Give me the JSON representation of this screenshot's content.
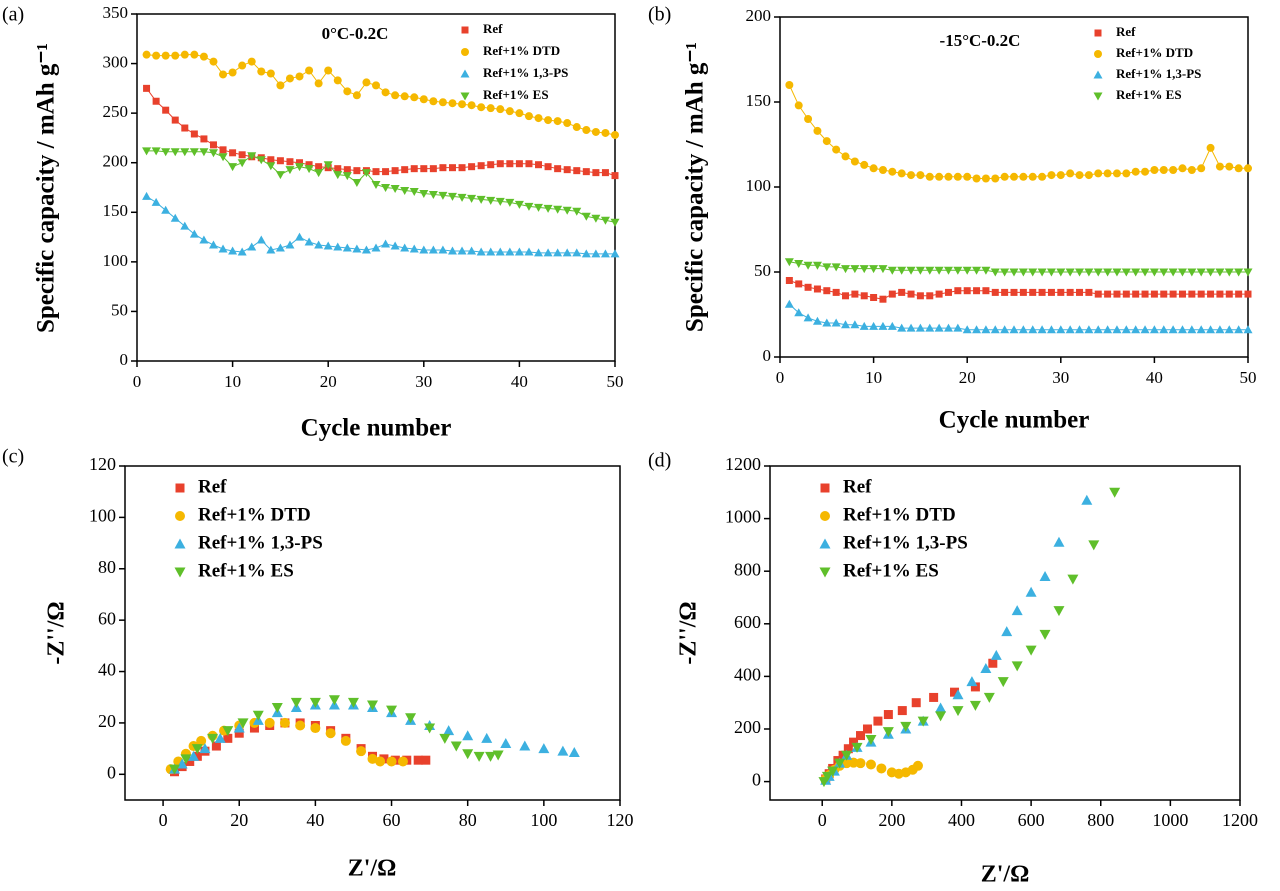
{
  "chart_data": [
    {
      "type": "line",
      "panel_label": "(a)",
      "title": "0°C-0.2C",
      "xlabel": "Cycle number",
      "ylabel": "Specific capacity / mAh g⁻¹",
      "xlim": [
        0,
        50
      ],
      "xticks": [
        0,
        10,
        20,
        30,
        40,
        50
      ],
      "ylim": [
        0,
        350
      ],
      "yticks": [
        0,
        50,
        100,
        150,
        200,
        250,
        300,
        350
      ],
      "legend": "upper right",
      "x": [
        1,
        2,
        3,
        4,
        5,
        6,
        7,
        8,
        9,
        10,
        11,
        12,
        13,
        14,
        15,
        16,
        17,
        18,
        19,
        20,
        21,
        22,
        23,
        24,
        25,
        26,
        27,
        28,
        29,
        30,
        31,
        32,
        33,
        34,
        35,
        36,
        37,
        38,
        39,
        40,
        41,
        42,
        43,
        44,
        45,
        46,
        47,
        48,
        49,
        50
      ],
      "series": [
        {
          "name": "Ref",
          "color": "#e8412c",
          "marker": "square",
          "values": [
            275,
            262,
            253,
            243,
            235,
            229,
            224,
            218,
            213,
            210,
            208,
            206,
            205,
            203,
            202,
            201,
            200,
            198,
            196,
            195,
            194,
            193,
            192,
            192,
            191,
            191,
            192,
            193,
            194,
            194,
            194,
            195,
            195,
            195,
            196,
            197,
            198,
            199,
            199,
            199,
            199,
            198,
            196,
            194,
            193,
            192,
            191,
            190,
            190,
            187
          ]
        },
        {
          "name": "Ref+1% DTD",
          "color": "#f5b800",
          "marker": "circle",
          "values": [
            309,
            308,
            308,
            308,
            309,
            309,
            307,
            302,
            289,
            291,
            298,
            302,
            292,
            290,
            278,
            285,
            287,
            293,
            280,
            293,
            283,
            272,
            268,
            281,
            278,
            271,
            268,
            267,
            266,
            264,
            262,
            261,
            260,
            259,
            258,
            256,
            255,
            254,
            252,
            250,
            247,
            245,
            243,
            242,
            240,
            236,
            233,
            231,
            230,
            228
          ]
        },
        {
          "name": "Ref+1% 1,3-PS",
          "color": "#3cb0e0",
          "marker": "triangle-up",
          "values": [
            166,
            160,
            152,
            144,
            136,
            128,
            122,
            117,
            113,
            111,
            110,
            115,
            122,
            112,
            114,
            117,
            125,
            120,
            117,
            116,
            115,
            114,
            113,
            112,
            114,
            118,
            116,
            114,
            113,
            112,
            112,
            112,
            111,
            111,
            111,
            110,
            110,
            110,
            110,
            110,
            110,
            109,
            109,
            109,
            109,
            109,
            108,
            108,
            108,
            108
          ]
        },
        {
          "name": "Ref+1% ES",
          "color": "#5fbf2a",
          "marker": "triangle-down",
          "values": [
            212,
            212,
            211,
            211,
            211,
            211,
            211,
            210,
            206,
            196,
            200,
            207,
            203,
            197,
            188,
            193,
            196,
            194,
            190,
            198,
            188,
            187,
            180,
            190,
            178,
            175,
            174,
            172,
            171,
            169,
            168,
            167,
            166,
            165,
            164,
            163,
            162,
            161,
            160,
            158,
            156,
            155,
            154,
            153,
            152,
            151,
            146,
            144,
            142,
            140
          ]
        }
      ]
    },
    {
      "type": "line",
      "panel_label": "(b)",
      "title": "-15°C-0.2C",
      "xlabel": "Cycle number",
      "ylabel": "Specific capacity / mAh g⁻¹",
      "xlim": [
        0,
        50
      ],
      "xticks": [
        0,
        10,
        20,
        30,
        40,
        50
      ],
      "ylim": [
        0,
        200
      ],
      "yticks": [
        0,
        50,
        100,
        150,
        200
      ],
      "legend": "upper right",
      "x": [
        1,
        2,
        3,
        4,
        5,
        6,
        7,
        8,
        9,
        10,
        11,
        12,
        13,
        14,
        15,
        16,
        17,
        18,
        19,
        20,
        21,
        22,
        23,
        24,
        25,
        26,
        27,
        28,
        29,
        30,
        31,
        32,
        33,
        34,
        35,
        36,
        37,
        38,
        39,
        40,
        41,
        42,
        43,
        44,
        45,
        46,
        47,
        48,
        49,
        50
      ],
      "series": [
        {
          "name": "Ref",
          "color": "#e8412c",
          "marker": "square",
          "values": [
            45,
            43,
            41,
            40,
            39,
            38,
            36,
            37,
            36,
            35,
            34,
            37,
            38,
            37,
            36,
            36,
            37,
            38,
            39,
            39,
            39,
            39,
            38,
            38,
            38,
            38,
            38,
            38,
            38,
            38,
            38,
            38,
            38,
            37,
            37,
            37,
            37,
            37,
            37,
            37,
            37,
            37,
            37,
            37,
            37,
            37,
            37,
            37,
            37,
            37
          ]
        },
        {
          "name": "Ref+1% DTD",
          "color": "#f5b800",
          "marker": "circle",
          "values": [
            160,
            148,
            140,
            133,
            127,
            122,
            118,
            115,
            113,
            111,
            110,
            109,
            108,
            107,
            107,
            106,
            106,
            106,
            106,
            106,
            105,
            105,
            105,
            106,
            106,
            106,
            106,
            106,
            107,
            107,
            108,
            107,
            107,
            108,
            108,
            108,
            108,
            109,
            109,
            110,
            110,
            110,
            111,
            110,
            111,
            123,
            112,
            112,
            111,
            111
          ]
        },
        {
          "name": "Ref+1% 1,3-PS",
          "color": "#3cb0e0",
          "marker": "triangle-up",
          "values": [
            31,
            26,
            23,
            21,
            20,
            20,
            19,
            19,
            18,
            18,
            18,
            18,
            17,
            17,
            17,
            17,
            17,
            17,
            17,
            16,
            16,
            16,
            16,
            16,
            16,
            16,
            16,
            16,
            16,
            16,
            16,
            16,
            16,
            16,
            16,
            16,
            16,
            16,
            16,
            16,
            16,
            16,
            16,
            16,
            16,
            16,
            16,
            16,
            16,
            16
          ]
        },
        {
          "name": "Ref+1% ES",
          "color": "#5fbf2a",
          "marker": "triangle-down",
          "values": [
            56,
            55,
            54,
            54,
            53,
            53,
            52,
            52,
            52,
            52,
            52,
            51,
            51,
            51,
            51,
            51,
            51,
            51,
            51,
            51,
            51,
            51,
            50,
            50,
            50,
            50,
            50,
            50,
            50,
            50,
            50,
            50,
            50,
            50,
            50,
            50,
            50,
            50,
            50,
            50,
            50,
            50,
            50,
            50,
            50,
            50,
            50,
            50,
            50,
            50
          ]
        }
      ]
    },
    {
      "type": "scatter",
      "panel_label": "(c)",
      "xlabel": "Z'/Ω",
      "ylabel": "-Z''/Ω",
      "xlim": [
        -10,
        120
      ],
      "xticks": [
        0,
        20,
        40,
        60,
        80,
        100,
        120
      ],
      "ylim": [
        -10,
        120
      ],
      "yticks": [
        0,
        20,
        40,
        60,
        80,
        100,
        120
      ],
      "legend": "upper left",
      "series": [
        {
          "name": "Ref",
          "color": "#e8412c",
          "marker": "square",
          "x": [
            3,
            5,
            7,
            9,
            11,
            14,
            17,
            20,
            24,
            28,
            32,
            36,
            40,
            44,
            48,
            52,
            55,
            58,
            61,
            64,
            67,
            69
          ],
          "y": [
            1,
            3,
            5,
            7,
            9,
            11,
            14,
            16,
            18,
            19,
            20,
            20,
            19,
            17,
            14,
            10,
            7,
            6,
            5.5,
            5.5,
            5.5,
            5.5
          ]
        },
        {
          "name": "Ref+1% DTD",
          "color": "#f5b800",
          "marker": "circle",
          "x": [
            2,
            4,
            6,
            8,
            10,
            13,
            16,
            20,
            24,
            28,
            32,
            36,
            40,
            44,
            48,
            52,
            55,
            57,
            60,
            63
          ],
          "y": [
            2,
            5,
            8,
            11,
            13,
            15,
            17,
            19,
            20,
            20,
            20,
            19,
            18,
            16,
            13,
            9,
            6,
            5,
            5,
            5
          ]
        },
        {
          "name": "Ref+1% 1,3-PS",
          "color": "#3cb0e0",
          "marker": "triangle-up",
          "x": [
            3,
            5,
            8,
            11,
            15,
            20,
            25,
            30,
            35,
            40,
            45,
            50,
            55,
            60,
            65,
            70,
            75,
            80,
            85,
            90,
            95,
            100,
            105,
            108
          ],
          "y": [
            2,
            4,
            7,
            10,
            14,
            18,
            21,
            24,
            26,
            27,
            27,
            27,
            26,
            24,
            21,
            19,
            17,
            15,
            14,
            12,
            11,
            10,
            9,
            8.5
          ]
        },
        {
          "name": "Ref+1% ES",
          "color": "#5fbf2a",
          "marker": "triangle-down",
          "x": [
            3,
            6,
            9,
            13,
            17,
            21,
            25,
            30,
            35,
            40,
            45,
            50,
            55,
            60,
            65,
            70,
            74,
            77,
            80,
            83,
            86,
            88
          ],
          "y": [
            2,
            6,
            10,
            14,
            17,
            20,
            23,
            26,
            28,
            28,
            29,
            28,
            27,
            25,
            22,
            18,
            14,
            11,
            8,
            7,
            7,
            7.5
          ]
        }
      ]
    },
    {
      "type": "scatter",
      "panel_label": "(d)",
      "xlabel": "Z'/Ω",
      "ylabel": "-Z''/Ω",
      "xlim": [
        -150,
        1200
      ],
      "xticks": [
        0,
        200,
        400,
        600,
        800,
        1000,
        1200
      ],
      "ylim": [
        -70,
        1200
      ],
      "yticks": [
        0,
        200,
        400,
        600,
        800,
        1000,
        1200
      ],
      "legend": "upper left",
      "series": [
        {
          "name": "Ref",
          "color": "#e8412c",
          "marker": "square",
          "x": [
            10,
            20,
            30,
            45,
            60,
            75,
            90,
            110,
            130,
            160,
            190,
            230,
            270,
            320,
            380,
            440,
            490
          ],
          "y": [
            10,
            30,
            50,
            80,
            100,
            125,
            150,
            175,
            200,
            230,
            255,
            270,
            300,
            320,
            340,
            360,
            450
          ]
        },
        {
          "name": "Ref+1% DTD",
          "color": "#f5b800",
          "marker": "circle",
          "x": [
            10,
            20,
            35,
            50,
            70,
            90,
            110,
            140,
            170,
            200,
            220,
            240,
            260,
            275
          ],
          "y": [
            10,
            25,
            45,
            60,
            70,
            72,
            70,
            65,
            50,
            35,
            30,
            35,
            45,
            60
          ]
        },
        {
          "name": "Ref+1% 1,3-PS",
          "color": "#3cb0e0",
          "marker": "triangle-up",
          "x": [
            10,
            20,
            35,
            50,
            70,
            100,
            140,
            190,
            240,
            290,
            340,
            390,
            430,
            470,
            500,
            530,
            560,
            600,
            640,
            680,
            760
          ],
          "y": [
            5,
            20,
            40,
            70,
            100,
            130,
            150,
            180,
            200,
            230,
            280,
            330,
            380,
            430,
            480,
            570,
            650,
            720,
            780,
            910,
            1070
          ]
        },
        {
          "name": "Ref+1% ES",
          "color": "#5fbf2a",
          "marker": "triangle-down",
          "x": [
            5,
            15,
            30,
            50,
            70,
            100,
            140,
            190,
            240,
            290,
            340,
            390,
            440,
            480,
            520,
            560,
            600,
            640,
            680,
            720,
            780,
            840
          ],
          "y": [
            0,
            20,
            40,
            70,
            100,
            130,
            160,
            190,
            210,
            230,
            250,
            270,
            290,
            320,
            380,
            440,
            500,
            560,
            650,
            770,
            900,
            1100
          ]
        }
      ]
    }
  ]
}
